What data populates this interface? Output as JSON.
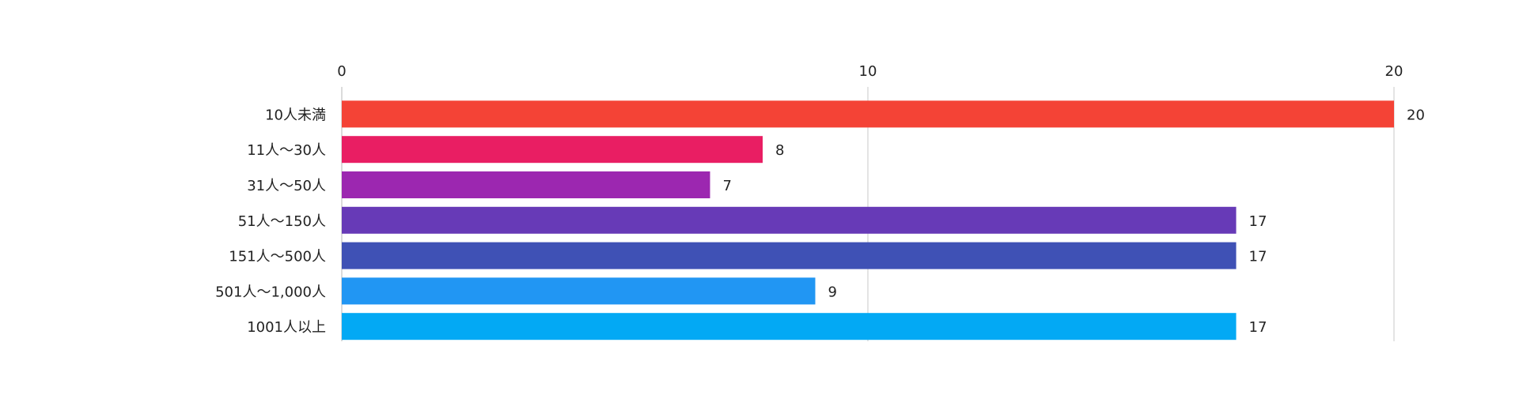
{
  "chart_data": {
    "type": "bar",
    "orientation": "horizontal",
    "title": "",
    "xlabel": "",
    "ylabel": "",
    "xlim": [
      0,
      20
    ],
    "x_ticks": [
      0,
      10,
      20
    ],
    "x_axis_position": "top",
    "grid": true,
    "legend": "none",
    "data_labels": true,
    "categories": [
      "10人未満",
      "11人〜30人",
      "31人〜50人",
      "51人〜150人",
      "151人〜500人",
      "501人〜1,000人",
      "1001人以上"
    ],
    "values": [
      20,
      8,
      7,
      17,
      17,
      9,
      17
    ],
    "colors": [
      "#f44336",
      "#e91e63",
      "#9c27b0",
      "#673ab7",
      "#3f51b5",
      "#2196f3",
      "#03a9f4"
    ]
  }
}
